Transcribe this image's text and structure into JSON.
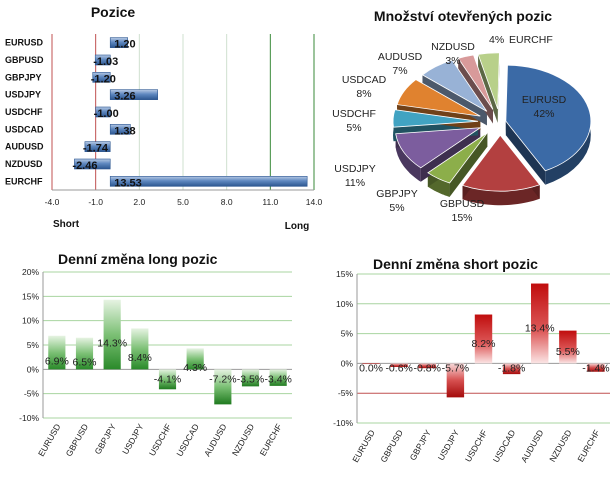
{
  "chart_data": [
    {
      "type": "bar",
      "orientation": "horizontal",
      "title": "Pozice",
      "categories": [
        "EURUSD",
        "GBPUSD",
        "GBPJPY",
        "USDJPY",
        "USDCHF",
        "USDCAD",
        "AUDUSD",
        "NZDUSD",
        "EURCHF"
      ],
      "values": [
        1.2,
        -1.03,
        -1.2,
        3.26,
        -1.0,
        1.38,
        -1.74,
        -2.46,
        13.53
      ],
      "value_labels": [
        "1.20",
        "-1.03",
        "-1.20",
        "3.26",
        "-1.00",
        "1.38",
        "-1.74",
        "-2.46",
        "13.53"
      ],
      "xlim": [
        -4,
        14
      ],
      "xticks": [
        -4,
        -1,
        2,
        5,
        8,
        11,
        14
      ],
      "xtick_labels": [
        "-4.0",
        "-1.0",
        "2.0",
        "5.0",
        "8.0",
        "11.0",
        "14.0"
      ],
      "left_label": "Short",
      "right_label": "Long",
      "color": "#3d6aa5"
    },
    {
      "type": "pie",
      "title": "Množství otevřených pozic",
      "labels": [
        "EURUSD",
        "GBPUSD",
        "GBPJPY",
        "USDJPY",
        "USDCHF",
        "USDCAD",
        "AUDUSD",
        "NZDUSD",
        "EURCHF"
      ],
      "values": [
        42,
        15,
        5,
        11,
        5,
        8,
        7,
        3,
        4
      ],
      "value_labels": [
        "42%",
        "15%",
        "5%",
        "11%",
        "5%",
        "8%",
        "7%",
        "3%",
        "4%"
      ],
      "colors": [
        "#3b6aa6",
        "#b34040",
        "#8cae4a",
        "#7c5d9e",
        "#41a3c2",
        "#e0822f",
        "#98b2d6",
        "#d89a9a",
        "#b8d08a"
      ]
    },
    {
      "type": "bar",
      "title": "Denní změna long pozic",
      "categories": [
        "EURUSD",
        "GBPUSD",
        "GBPJPY",
        "USDJPY",
        "USDCHF",
        "USDCAD",
        "AUDUSD",
        "NZDUSD",
        "EURCHF"
      ],
      "values": [
        6.9,
        6.5,
        14.3,
        8.4,
        -4.1,
        4.3,
        -7.2,
        -3.5,
        -3.4
      ],
      "value_labels": [
        "6.9%",
        "6.5%",
        "14.3%",
        "8.4%",
        "-4.1%",
        "4.3%",
        "-7.2%",
        "-3.5%",
        "-3.4%"
      ],
      "ylim": [
        -10,
        20
      ],
      "yticks": [
        -10,
        -5,
        0,
        5,
        10,
        15,
        20
      ],
      "ytick_labels": [
        "-10%",
        "-5%",
        "0%",
        "5%",
        "10%",
        "15%",
        "20%"
      ],
      "color": "#3a9a3a"
    },
    {
      "type": "bar",
      "title": "Denní změna short pozic",
      "categories": [
        "EURUSD",
        "GBPUSD",
        "GBPJPY",
        "USDJPY",
        "USDCHF",
        "USDCAD",
        "AUDUSD",
        "NZDUSD",
        "EURCHF"
      ],
      "values": [
        0.0,
        -0.6,
        -0.8,
        -5.7,
        8.2,
        -1.8,
        13.4,
        5.5,
        -1.4
      ],
      "value_labels": [
        "0.0%",
        "-0.6%",
        "-0.8%",
        "-5.7%",
        "8.2%",
        "-1.8%",
        "13.4%",
        "5.5%",
        "-1.4%"
      ],
      "ylim": [
        -10,
        15
      ],
      "yticks": [
        -10,
        -5,
        0,
        5,
        10,
        15
      ],
      "ytick_labels": [
        "-10%",
        "-5%",
        "0%",
        "5%",
        "10%",
        "15%"
      ],
      "color": "#c42020"
    }
  ]
}
